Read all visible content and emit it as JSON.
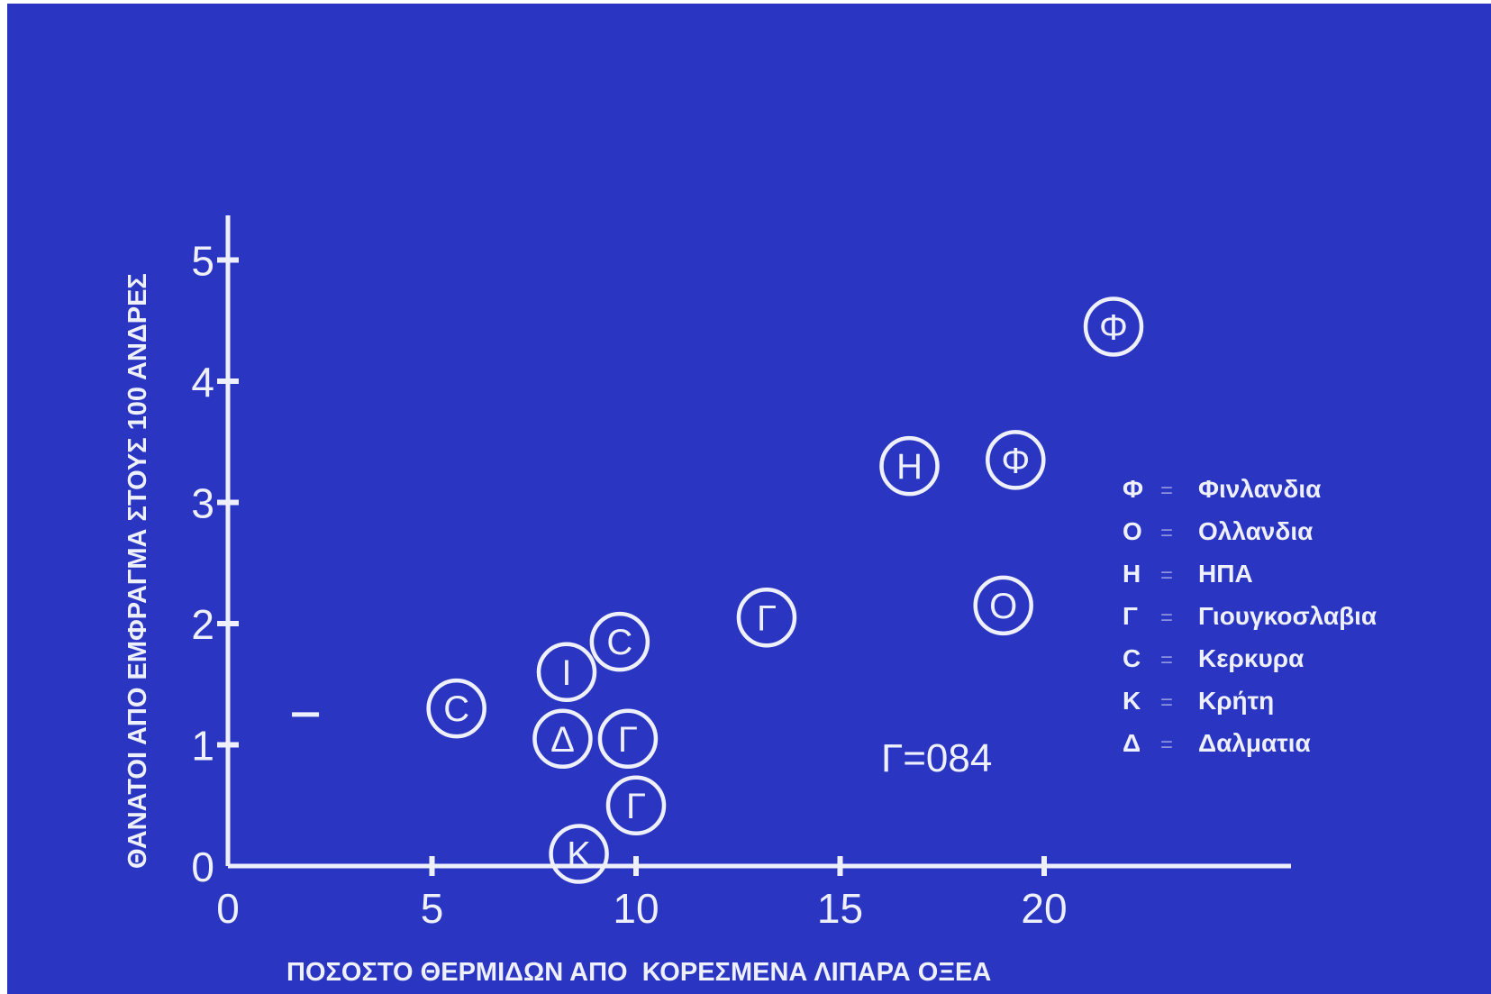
{
  "chart_data": {
    "type": "scatter",
    "title": "",
    "xlabel": "ΠΟΣΟΣΤΟ ΘΕΡΜΙΔΩΝ ΑΠΟ  ΚΟΡΕΣΜΕΝΑ ΛΙΠΑΡΑ ΟΞΕΑ",
    "ylabel": "ΘΑΝΑΤΟΙ ΑΠΟ ΕΜΦΡΑΓΜΑ ΣΤΟΥΣ 100 ΑΝΔΡΕΣ",
    "xlim": [
      0,
      25
    ],
    "ylim": [
      0,
      5.6
    ],
    "xticks": [
      "0",
      "5",
      "10",
      "15",
      "20"
    ],
    "yticks": [
      "0",
      "1",
      "2",
      "3",
      "4",
      "5"
    ],
    "grid": false,
    "annotation": "Γ=084",
    "points": [
      {
        "label": "Φ",
        "x": 21.7,
        "y": 4.45
      },
      {
        "label": "Φ",
        "x": 19.3,
        "y": 3.35
      },
      {
        "label": "Η",
        "x": 16.7,
        "y": 3.3
      },
      {
        "label": "Ο",
        "x": 19.0,
        "y": 2.15
      },
      {
        "label": "Γ",
        "x": 13.2,
        "y": 2.05
      },
      {
        "label": "C",
        "x": 9.6,
        "y": 1.85
      },
      {
        "label": "Ι",
        "x": 8.3,
        "y": 1.6
      },
      {
        "label": "C",
        "x": 5.6,
        "y": 1.3
      },
      {
        "label": "Δ",
        "x": 8.2,
        "y": 1.05
      },
      {
        "label": "Γ",
        "x": 9.8,
        "y": 1.05
      },
      {
        "label": "Γ",
        "x": 10.0,
        "y": 0.5
      },
      {
        "label": "Κ",
        "x": 8.6,
        "y": 0.1
      }
    ],
    "dash_marker": {
      "x": 1.9,
      "y": 1.25
    },
    "legend": {
      "placement": "right",
      "entries": [
        {
          "symbol": "Φ",
          "sep": "=",
          "name": "Φινλανδια"
        },
        {
          "symbol": "Ο",
          "sep": "=",
          "name": "Ολλανδια"
        },
        {
          "symbol": "Η",
          "sep": "=",
          "name": "ΗΠΑ"
        },
        {
          "symbol": "Γ",
          "sep": "=",
          "name": "Γιουγκοσλαβια"
        },
        {
          "symbol": "C",
          "sep": "=",
          "name": "Κερκυρα"
        },
        {
          "symbol": "Κ",
          "sep": "=",
          "name": "Κρήτη"
        },
        {
          "symbol": "Δ",
          "sep": "=",
          "name": "Δαλματια"
        }
      ]
    },
    "colors": {
      "background": "#2a36c2",
      "ink": "#eef0ff"
    }
  }
}
